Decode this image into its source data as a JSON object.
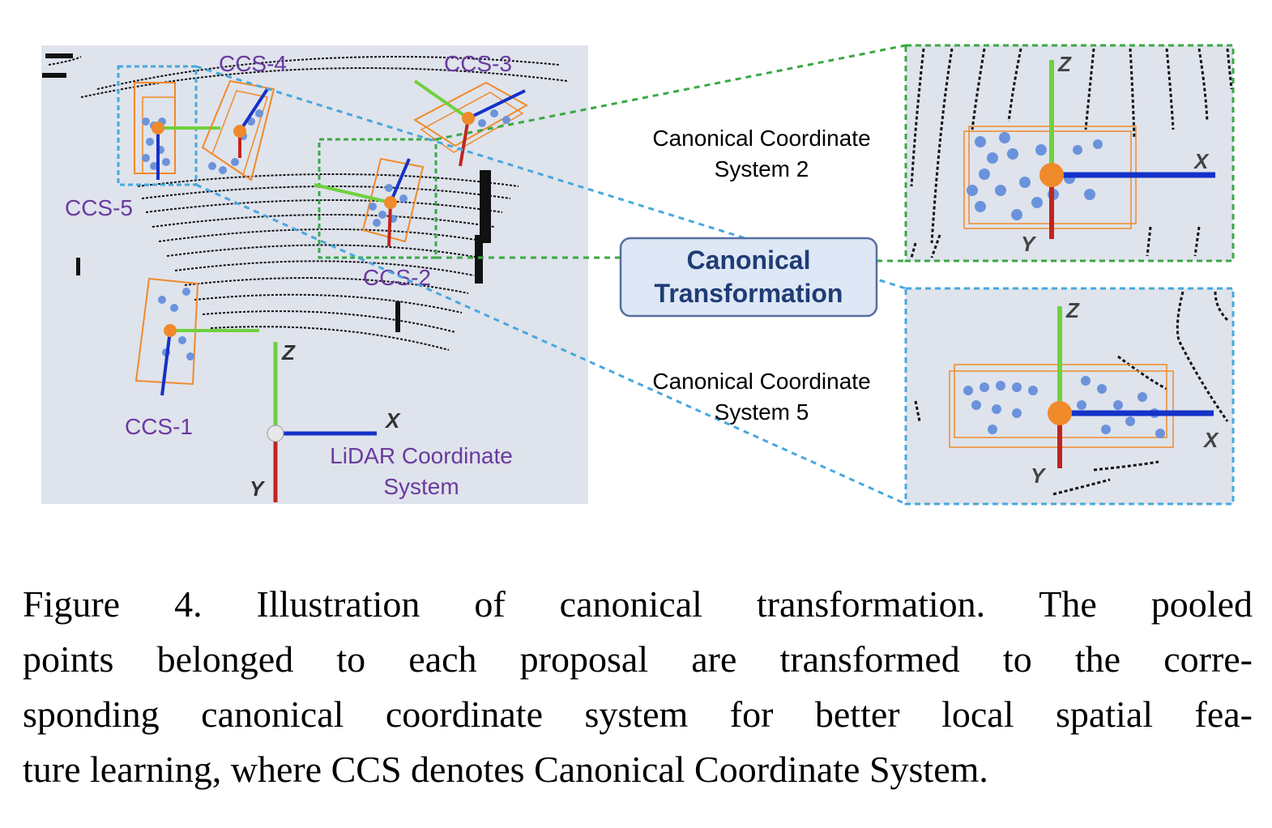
{
  "figure": {
    "ccs_labels": {
      "ccs1": "CCS-1",
      "ccs2": "CCS-2",
      "ccs3": "CCS-3",
      "ccs4": "CCS-4",
      "ccs5": "CCS-5"
    },
    "lidar_axes": {
      "x": "X",
      "y": "Y",
      "z": "Z"
    },
    "lidar_label_line1": "LiDAR Coordinate",
    "lidar_label_line2": "System",
    "transform_box_line1": "Canonical",
    "transform_box_line2": "Transformation",
    "inset_top_label_line1": "Canonical Coordinate",
    "inset_top_label_line2": "System 2",
    "inset_bottom_label_line1": "Canonical Coordinate",
    "inset_bottom_label_line2": "System 5",
    "inset_axes": {
      "x": "X",
      "y": "Y",
      "z": "Z"
    },
    "colors": {
      "scene_bg": "#dfe3ec",
      "box_orange": "#f08a2a",
      "points_blue": "#6b93dc",
      "axis_red": "#c0251e",
      "axis_green": "#6ed13e",
      "axis_blue": "#1432c8",
      "ccs_purple": "#6a3aa0",
      "dash_green": "#3aa845",
      "dash_blue": "#47a8dd",
      "transform_box_fill": "#dde7f5",
      "transform_box_stroke": "#556fa0",
      "transform_text": "#1f3c75"
    }
  },
  "caption": {
    "line1": "Figure 4. Illustration of canonical transformation.  The pooled",
    "line2": "points belonged to each proposal are transformed to the corre-",
    "line3": "sponding canonical coordinate system for better local spatial fea-",
    "line4": "ture learning, where CCS denotes Canonical Coordinate System."
  }
}
